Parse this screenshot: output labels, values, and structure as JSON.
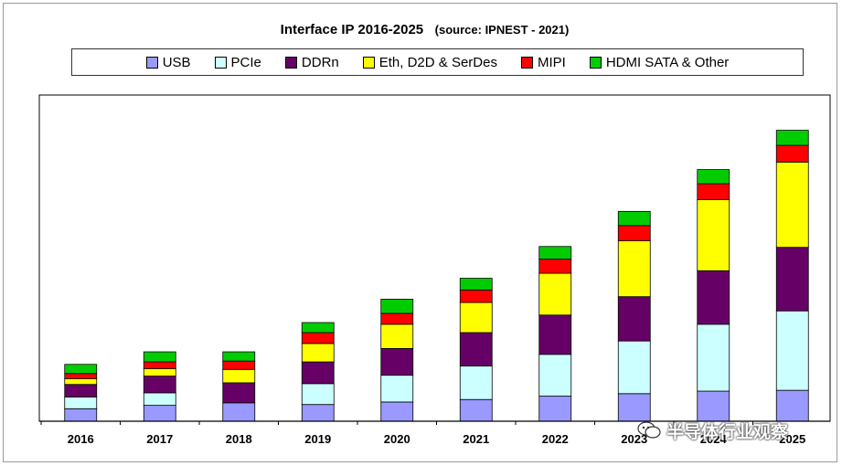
{
  "chart_data": {
    "type": "bar",
    "stacked": true,
    "title": "Interface IP  2016-2025",
    "title_source": "(source: IPNEST - 2021)",
    "categories": [
      "2016",
      "2017",
      "2018",
      "2019",
      "2020",
      "2021",
      "2022",
      "2023",
      "2024",
      "2025"
    ],
    "series": [
      {
        "name": "USB",
        "color": "#9999ff",
        "values": [
          15,
          19,
          22,
          20,
          23,
          26,
          30,
          33,
          36,
          37
        ]
      },
      {
        "name": "PCIe",
        "color": "#ccffff",
        "values": [
          14,
          15,
          0,
          25,
          32,
          40,
          50,
          63,
          80,
          95
        ]
      },
      {
        "name": "DDRn",
        "color": "#660066",
        "values": [
          15,
          20,
          24,
          26,
          32,
          40,
          47,
          53,
          64,
          76
        ]
      },
      {
        "name": "Eth, D2D & SerDes",
        "color": "#ffff00",
        "values": [
          7,
          9,
          16,
          22,
          29,
          36,
          50,
          67,
          85,
          102
        ]
      },
      {
        "name": "MIPI",
        "color": "#ff0000",
        "values": [
          6,
          8,
          10,
          13,
          13,
          15,
          17,
          18,
          19,
          20
        ]
      },
      {
        "name": "HDMI SATA & Other",
        "color": "#00cc00",
        "values": [
          11,
          12,
          11,
          12,
          17,
          14,
          15,
          17,
          17,
          18
        ]
      }
    ],
    "ylim": [
      0,
      400
    ],
    "grid": false,
    "legend_position": "top"
  },
  "watermark": {
    "text": "半导体行业观察",
    "icon": "wechat-icon"
  }
}
